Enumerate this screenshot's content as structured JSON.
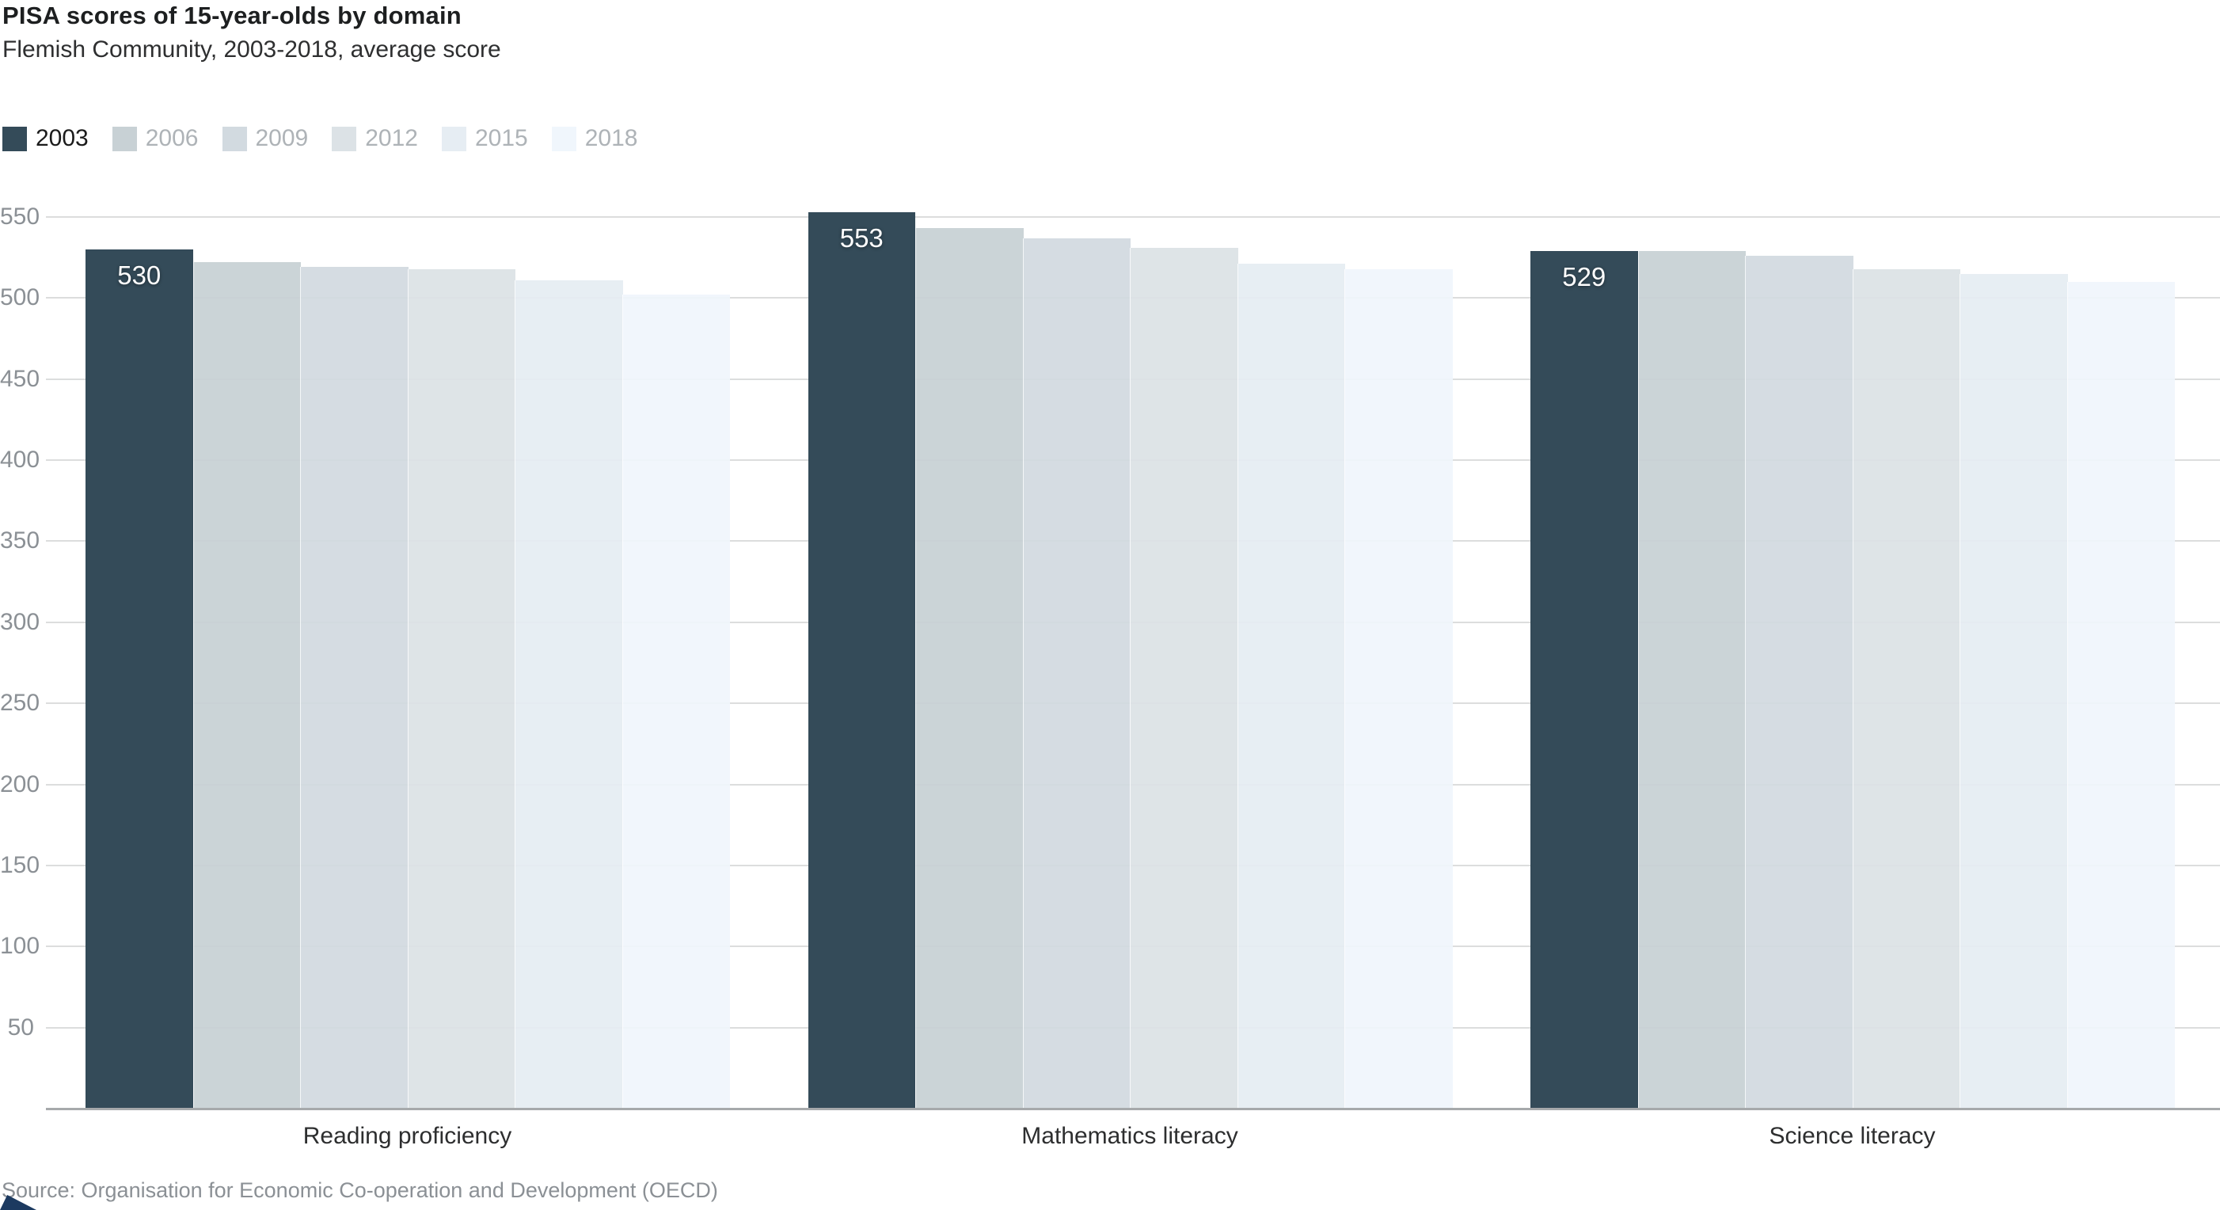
{
  "header": {
    "title": "PISA scores of 15-year-olds by domain",
    "subtitle": "Flemish Community, 2003-2018, average score"
  },
  "source": "Source: Organisation for Economic Co-operation and Development (OECD)",
  "colors": {
    "grid": "#dcdddd",
    "axis_line": "#a6a9ab",
    "tick_text": "#8b9095",
    "title_text": "#1d1f20",
    "legend_inactive_text": "#aeb3b7",
    "legend_active_text": "#1b1b1b",
    "bar_label_text": "#ffffff",
    "logo": "#1c3a60"
  },
  "chart_data": {
    "type": "bar",
    "title": "PISA scores of 15-year-olds by domain",
    "subtitle": "Flemish Community, 2003-2018, average score",
    "categories": [
      "Reading proficiency",
      "Mathematics literacy",
      "Science literacy"
    ],
    "series": [
      {
        "name": "2003",
        "values": [
          530,
          553,
          529
        ],
        "color": "#344B59",
        "labeled": true
      },
      {
        "name": "2006",
        "values": [
          522,
          543,
          529
        ],
        "color": "#C8D1D5",
        "labeled": false
      },
      {
        "name": "2009",
        "values": [
          519,
          537,
          526
        ],
        "color": "#D2DAE0",
        "labeled": false
      },
      {
        "name": "2012",
        "values": [
          518,
          531,
          518
        ],
        "color": "#DCE2E6",
        "labeled": false
      },
      {
        "name": "2015",
        "values": [
          511,
          521,
          515
        ],
        "color": "#E6EDF3",
        "labeled": false
      },
      {
        "name": "2018",
        "values": [
          502,
          518,
          510
        ],
        "color": "#F0F6FC",
        "labeled": false
      }
    ],
    "bar_value_labels": [
      "530",
      "553",
      "529"
    ],
    "xlabel": "",
    "ylabel": "",
    "ylim": [
      0,
      550
    ],
    "yticks": [
      50,
      100,
      150,
      200,
      250,
      300,
      350,
      400,
      450,
      500,
      550
    ],
    "grid": true,
    "legend_position": "top-left"
  }
}
